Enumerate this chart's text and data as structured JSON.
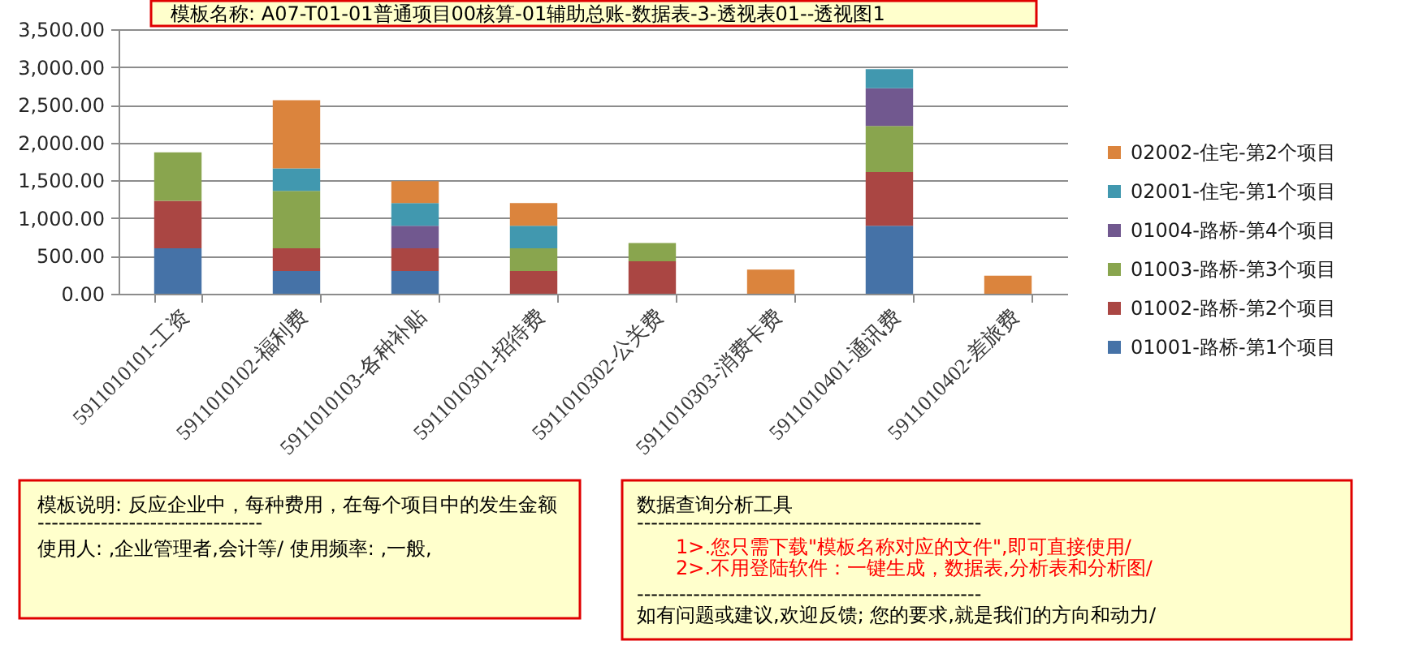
{
  "chart_data": {
    "type": "bar",
    "title": "模板名称:   A07-T01-01普通项目00核算-01辅助总账-数据表-3-透视表01--透视图1",
    "categories": [
      "5911010101-工资",
      "5911010102-福利费",
      "5911010103-各种补贴",
      "5911010301-招待费",
      "5911010302-公关费",
      "5911010303-消费卡费",
      "5911010401-通讯费",
      "5911010402-差旅费"
    ],
    "series": [
      {
        "name": "01001-路桥-第1个项目",
        "color": "#4572a7",
        "values": [
          600,
          300,
          300,
          null,
          null,
          null,
          900,
          null
        ]
      },
      {
        "name": "01002-路桥-第2个项目",
        "color": "#aa4643",
        "values": [
          630,
          300,
          300,
          300,
          430,
          null,
          710,
          null
        ]
      },
      {
        "name": "01003-路桥-第3个项目",
        "color": "#89a54e",
        "values": [
          640,
          760,
          null,
          300,
          240,
          null,
          610,
          null
        ]
      },
      {
        "name": "01004-路桥-第4个项目",
        "color": "#71588f",
        "values": [
          null,
          null,
          300,
          null,
          null,
          null,
          500,
          null
        ]
      },
      {
        "name": "02001-住宅-第1个项目",
        "color": "#4198af",
        "values": [
          null,
          300,
          300,
          300,
          null,
          null,
          250,
          null
        ]
      },
      {
        "name": "02002-住宅-第2个项目",
        "color": "#db843d",
        "values": [
          null,
          900,
          290,
          300,
          null,
          320,
          null,
          240
        ]
      }
    ],
    "stacked": true,
    "ylim": [
      0,
      3500
    ],
    "yticks": [
      {
        "value": 0,
        "label": "0.00"
      },
      {
        "value": 500,
        "label": "500.00"
      },
      {
        "value": 1000,
        "label": "1,000.00"
      },
      {
        "value": 1500,
        "label": "1,500.00"
      },
      {
        "value": 2000,
        "label": "2,000.00"
      },
      {
        "value": 2500,
        "label": "2,500.00"
      },
      {
        "value": 3000,
        "label": "3,000.00"
      },
      {
        "value": 3500,
        "label": "3,500.00"
      }
    ],
    "grid": "y",
    "legend": "right",
    "annotations": [
      "模板说明: 反应企业中，每种费用，在每个项目中的发生金额",
      "--------------------------------",
      "使用人: ,企业管理者,会计等/      使用频率: ,一般,",
      "数据查询分析工具",
      "-------------------------------------------------",
      "1>.您只需下载\"模板名称对应的文件\",即可直接使用/",
      "2>.不用登陆软件：一键生成，数据表,分析表和分析图/",
      "-------------------------------------------------",
      "如有问题或建议,欢迎反馈; 您的要求,就是我们的方向和动力/"
    ]
  }
}
